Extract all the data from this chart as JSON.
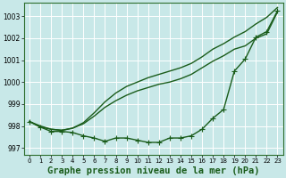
{
  "background_color": "#c8e8e8",
  "plot_bg_color": "#c8e8e8",
  "grid_color": "#b0d8d8",
  "line_color": "#1a5c1a",
  "xlabel": "Graphe pression niveau de la mer (hPa)",
  "xlabel_fontsize": 7.5,
  "ylim": [
    996.7,
    1003.6
  ],
  "xlim": [
    -0.5,
    23.5
  ],
  "yticks": [
    997,
    998,
    999,
    1000,
    1001,
    1002,
    1003
  ],
  "xticks": [
    0,
    1,
    2,
    3,
    4,
    5,
    6,
    7,
    8,
    9,
    10,
    11,
    12,
    13,
    14,
    15,
    16,
    17,
    18,
    19,
    20,
    21,
    22,
    23
  ],
  "series": [
    {
      "x": [
        0,
        1,
        2,
        3,
        4,
        5,
        6,
        7,
        8,
        9,
        10,
        11,
        12,
        13,
        14,
        15,
        16,
        17,
        18,
        19,
        20,
        21,
        22,
        23
      ],
      "y": [
        998.2,
        998.0,
        997.85,
        997.8,
        997.9,
        998.15,
        998.6,
        999.1,
        999.5,
        999.8,
        1000.0,
        1000.2,
        1000.35,
        1000.5,
        1000.65,
        1000.85,
        1001.15,
        1001.5,
        1001.75,
        1002.05,
        1002.3,
        1002.65,
        1002.95,
        1003.4
      ],
      "marker": null,
      "markersize": 0,
      "linewidth": 1.0
    },
    {
      "x": [
        0,
        1,
        2,
        3,
        4,
        5,
        6,
        7,
        8,
        9,
        10,
        11,
        12,
        13,
        14,
        15,
        16,
        17,
        18,
        19,
        20,
        21,
        22,
        23
      ],
      "y": [
        998.2,
        997.95,
        997.85,
        997.8,
        997.9,
        998.1,
        998.45,
        998.85,
        999.15,
        999.4,
        999.6,
        999.75,
        999.9,
        1000.0,
        1000.15,
        1000.35,
        1000.65,
        1000.95,
        1001.2,
        1001.5,
        1001.65,
        1002.0,
        1002.2,
        1003.2
      ],
      "marker": null,
      "markersize": 0,
      "linewidth": 1.0
    },
    {
      "x": [
        0,
        1,
        2,
        3,
        4,
        5,
        6,
        7,
        8,
        9,
        10,
        11,
        12,
        13,
        14,
        15,
        16,
        17,
        18,
        19,
        20,
        21,
        22,
        23
      ],
      "y": [
        998.2,
        997.95,
        997.75,
        997.75,
        997.7,
        997.55,
        997.45,
        997.3,
        997.45,
        997.45,
        997.35,
        997.25,
        997.25,
        997.45,
        997.45,
        997.55,
        997.85,
        998.35,
        998.75,
        1000.5,
        1001.05,
        1002.05,
        1002.3,
        1003.25
      ],
      "marker": "+",
      "markersize": 4,
      "linewidth": 1.0
    }
  ]
}
